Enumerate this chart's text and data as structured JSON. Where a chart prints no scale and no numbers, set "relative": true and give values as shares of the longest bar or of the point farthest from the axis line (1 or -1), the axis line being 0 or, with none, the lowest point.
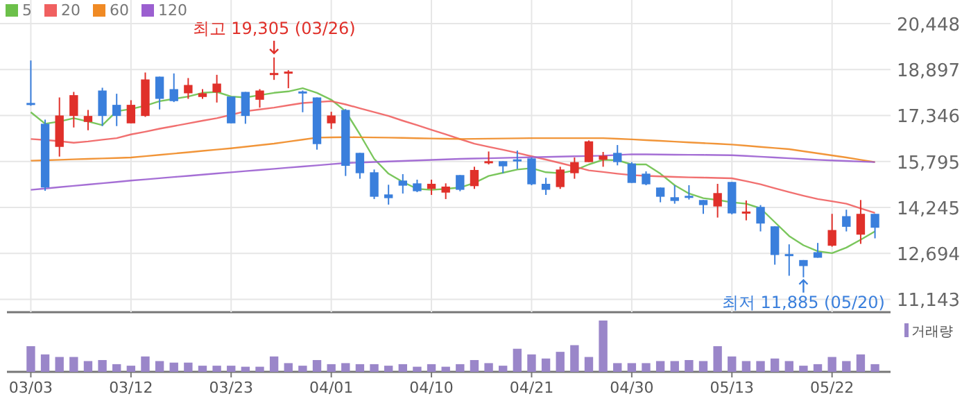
{
  "chart_data": [
    {
      "type": "candlestick",
      "categories": [
        null,
        null,
        null,
        null,
        null,
        null,
        null,
        null,
        null,
        null,
        null,
        null,
        null,
        null,
        null,
        null,
        null,
        null,
        null,
        null,
        null,
        null,
        null,
        null,
        null,
        null,
        null,
        null,
        null,
        null,
        null,
        null,
        null,
        null,
        null,
        null,
        null,
        null,
        null,
        null,
        null,
        null,
        null,
        null,
        null,
        null,
        null,
        null,
        null,
        null,
        null,
        null,
        null,
        null,
        null,
        null,
        null,
        null,
        null,
        null
      ],
      "ohlc": [
        [
          17770,
          19203,
          17675,
          17760
        ],
        [
          17067,
          17207,
          14806,
          14915
        ],
        [
          16287,
          17955,
          15960,
          17347
        ],
        [
          17331,
          18142,
          16942,
          18033
        ],
        [
          17129,
          17534,
          16848,
          17331
        ],
        [
          18189,
          18283,
          16989,
          17331
        ],
        [
          17706,
          18080,
          16989,
          17331
        ],
        [
          17082,
          17862,
          17082,
          17706
        ],
        [
          17331,
          18797,
          17300,
          18563
        ],
        [
          18657,
          18657,
          17550,
          17908
        ],
        [
          18236,
          18766,
          17799,
          17831
        ],
        [
          18096,
          18610,
          17908,
          18376
        ],
        [
          17971,
          18236,
          17908,
          18096
        ],
        [
          18127,
          18719,
          17784,
          18423
        ],
        [
          17986,
          17986,
          17082,
          17082
        ],
        [
          18142,
          18142,
          17067,
          17331
        ],
        [
          17877,
          18236,
          17612,
          18189
        ],
        [
          18750,
          19305,
          18548,
          18781
        ],
        [
          18781,
          18875,
          18267,
          18828
        ],
        [
          18158,
          18189,
          17456,
          18127
        ],
        [
          17955,
          17955,
          16194,
          16381
        ],
        [
          17082,
          17472,
          16895,
          17347
        ],
        [
          17534,
          17565,
          15305,
          15648
        ],
        [
          16085,
          16085,
          15212,
          15399
        ],
        [
          15430,
          15523,
          14526,
          14604
        ],
        [
          14682,
          15009,
          14339,
          14557
        ],
        [
          15150,
          15368,
          14713,
          14978
        ],
        [
          15056,
          15181,
          14760,
          14791
        ],
        [
          14869,
          15181,
          14666,
          15041
        ],
        [
          14744,
          15056,
          14526,
          14947
        ],
        [
          15336,
          15336,
          14791,
          14838
        ],
        [
          14962,
          15617,
          14869,
          15508
        ],
        [
          15773,
          16131,
          15695,
          15804
        ],
        [
          15804,
          15804,
          15399,
          15632
        ],
        [
          15866,
          16163,
          15539,
          15835
        ],
        [
          15898,
          15929,
          14993,
          15024
        ],
        [
          15040,
          15243,
          14666,
          14838
        ],
        [
          14931,
          15617,
          14869,
          15523
        ],
        [
          15399,
          15929,
          15212,
          15773
        ],
        [
          15773,
          16505,
          15773,
          16474
        ],
        [
          15851,
          16116,
          15617,
          15991
        ],
        [
          16085,
          16349,
          15664,
          15773
        ],
        [
          15726,
          15773,
          15071,
          15071
        ],
        [
          15383,
          15461,
          14993,
          15024
        ],
        [
          14915,
          14915,
          14417,
          14604
        ],
        [
          14588,
          14993,
          14370,
          14463
        ],
        [
          14635,
          14993,
          14510,
          14572
        ],
        [
          14494,
          14494,
          14027,
          14323
        ],
        [
          14276,
          15040,
          13902,
          14728
        ],
        [
          15103,
          15103,
          14011,
          14042
        ],
        [
          14073,
          14479,
          13808,
          14105
        ],
        [
          14261,
          14323,
          13434,
          13700
        ],
        [
          13606,
          13606,
          12312,
          12639
        ],
        [
          12670,
          12998,
          11938,
          12608
        ],
        [
          12468,
          12468,
          11885,
          12265
        ],
        [
          12733,
          13045,
          12546,
          12546
        ],
        [
          12951,
          14027,
          12920,
          13481
        ],
        [
          13949,
          14167,
          13434,
          13590
        ],
        [
          13325,
          14494,
          13014,
          14027
        ],
        [
          14027,
          14027,
          13201,
          13559
        ]
      ],
      "colors": [
        "#3a7fdc",
        "#3a7fdc",
        "#e0302a",
        "#e0302a",
        "#e0302a",
        "#3a7fdc",
        "#3a7fdc",
        "#e0302a",
        "#e0302a",
        "#3a7fdc",
        "#3a7fdc",
        "#e0302a",
        "#e0302a",
        "#e0302a",
        "#3a7fdc",
        "#3a7fdc",
        "#e0302a",
        "#e0302a",
        "#e0302a",
        "#3a7fdc",
        "#3a7fdc",
        "#e0302a",
        "#3a7fdc",
        "#3a7fdc",
        "#3a7fdc",
        "#3a7fdc",
        "#3a7fdc",
        "#3a7fdc",
        "#e0302a",
        "#e0302a",
        "#3a7fdc",
        "#e0302a",
        "#e0302a",
        "#3a7fdc",
        "#3a7fdc",
        "#3a7fdc",
        "#3a7fdc",
        "#e0302a",
        "#e0302a",
        "#e0302a",
        "#e0302a",
        "#3a7fdc",
        "#3a7fdc",
        "#3a7fdc",
        "#3a7fdc",
        "#3a7fdc",
        "#3a7fdc",
        "#3a7fdc",
        "#e0302a",
        "#3a7fdc",
        "#e0302a",
        "#3a7fdc",
        "#3a7fdc",
        "#3a7fdc",
        "#3a7fdc",
        "#3a7fdc",
        "#e0302a",
        "#3a7fdc",
        "#e0302a",
        "#3a7fdc"
      ],
      "series": [
        {
          "name": "5",
          "type": "line",
          "color": "#6cc04a",
          "values": [
            17456,
            17067,
            17144,
            17254,
            17144,
            17020,
            17488,
            17565,
            17675,
            17830,
            17908,
            17986,
            18111,
            18142,
            17986,
            17955,
            18033,
            18111,
            18158,
            18267,
            18111,
            17877,
            17488,
            16708,
            15882,
            15383,
            15103,
            14869,
            14838,
            14869,
            14915,
            15071,
            15305,
            15414,
            15523,
            15570,
            15430,
            15399,
            15492,
            15695,
            15851,
            15835,
            15695,
            15695,
            15383,
            14993,
            14713,
            14557,
            14494,
            14417,
            14370,
            14214,
            13746,
            13279,
            12967,
            12764,
            12702,
            12889,
            13154,
            13434
          ]
        },
        {
          "name": "20",
          "type": "line",
          "color": "#f06060",
          "values": [
            16552,
            16520,
            16480,
            16427,
            16470,
            16530,
            16583,
            16708,
            16800,
            16900,
            16989,
            17080,
            17170,
            17254,
            17370,
            17488,
            17550,
            17612,
            17690,
            17768,
            17800,
            17830,
            17721,
            17590,
            17460,
            17331,
            17170,
            17020,
            16864,
            16710,
            16550,
            16396,
            16290,
            16190,
            16085,
            15970,
            15860,
            15742,
            15620,
            15492,
            15440,
            15383,
            15336,
            15310,
            15290,
            15274,
            15260,
            15250,
            15240,
            15227,
            15130,
            15024,
            14890,
            14760,
            14640,
            14526,
            14450,
            14370,
            14210,
            14058
          ]
        },
        {
          "name": "60",
          "type": "line",
          "color": "#f08a24",
          "values": [
            15820,
            15836,
            15851,
            15867,
            15882,
            15898,
            15913,
            15929,
            15973,
            16017,
            16062,
            16106,
            16151,
            16195,
            16240,
            16292,
            16344,
            16396,
            16464,
            16531,
            16599,
            16607,
            16615,
            16610,
            16605,
            16599,
            16590,
            16580,
            16571,
            16561,
            16552,
            16558,
            16564,
            16571,
            16577,
            16583,
            16583,
            16583,
            16583,
            16583,
            16583,
            16560,
            16540,
            16515,
            16490,
            16465,
            16440,
            16415,
            16390,
            16365,
            16326,
            16287,
            16248,
            16209,
            16139,
            16069,
            15999,
            15929,
            15851,
            15773
          ]
        },
        {
          "name": "120",
          "type": "line",
          "color": "#9b5fd0",
          "values": [
            14838,
            14883,
            14927,
            14972,
            15016,
            15061,
            15105,
            15150,
            15190,
            15230,
            15270,
            15310,
            15350,
            15390,
            15430,
            15469,
            15508,
            15547,
            15586,
            15625,
            15664,
            15703,
            15742,
            15760,
            15777,
            15795,
            15812,
            15830,
            15847,
            15865,
            15882,
            15893,
            15904,
            15915,
            15926,
            15937,
            15948,
            15959,
            15970,
            15980,
            15991,
            16015,
            16038,
            16033,
            16029,
            16024,
            16020,
            16016,
            16011,
            16007,
            15981,
            15955,
            15929,
            15903,
            15877,
            15851,
            15831,
            15812,
            15792,
            15773
          ]
        }
      ],
      "ylim": [
        10708,
        20448
      ],
      "yticks": [
        {
          "value": 11143,
          "label": "11,143"
        },
        {
          "value": 12694,
          "label": "12,694"
        },
        {
          "value": 14245,
          "label": "14,245"
        },
        {
          "value": 15795,
          "label": "15,795"
        },
        {
          "value": 17346,
          "label": "17,346"
        },
        {
          "value": 18897,
          "label": "18,897"
        },
        {
          "value": 20448,
          "label": "20,448"
        }
      ],
      "grid": true,
      "legend": "top left",
      "tick_labels": "y",
      "marker": "none",
      "line_style": "solid",
      "annotations": [
        {
          "text": "최고 19,305 (03/26)",
          "y": 19305
        },
        {
          "text": "최저 11,885 (05/20)",
          "y": 11885
        }
      ]
    },
    {
      "type": "bar",
      "categories": [
        "03/03",
        null,
        null,
        null,
        null,
        null,
        null,
        "03/12",
        null,
        null,
        null,
        null,
        null,
        null,
        "03/23",
        null,
        null,
        null,
        null,
        null,
        null,
        "04/01",
        null,
        null,
        null,
        null,
        null,
        null,
        "04/10",
        null,
        null,
        null,
        null,
        null,
        null,
        "04/21",
        null,
        null,
        null,
        null,
        null,
        null,
        "04/30",
        null,
        null,
        null,
        null,
        null,
        null,
        "05/13",
        null,
        null,
        null,
        null,
        null,
        null,
        "05/22",
        null,
        null,
        null
      ],
      "series": [
        {
          "name": "거래량",
          "color": "#9a86c9",
          "values": [
            0.5,
            0.34,
            0.29,
            0.29,
            0.21,
            0.23,
            0.15,
            0.12,
            0.3,
            0.21,
            0.18,
            0.18,
            0.12,
            0.12,
            0.12,
            0.1,
            0.1,
            0.3,
            0.17,
            0.12,
            0.23,
            0.15,
            0.17,
            0.15,
            0.15,
            0.12,
            0.15,
            0.1,
            0.15,
            0.1,
            0.15,
            0.23,
            0.17,
            0.12,
            0.45,
            0.34,
            0.26,
            0.39,
            0.52,
            0.29,
            1,
            0.17,
            0.17,
            0.17,
            0.21,
            0.21,
            0.23,
            0.21,
            0.5,
            0.3,
            0.21,
            0.21,
            0.26,
            0.21,
            0.12,
            0.15,
            0.29,
            0.21,
            0.34,
            0.15
          ]
        }
      ],
      "relative": true,
      "tick_labels": "x",
      "legend": "top right"
    }
  ]
}
